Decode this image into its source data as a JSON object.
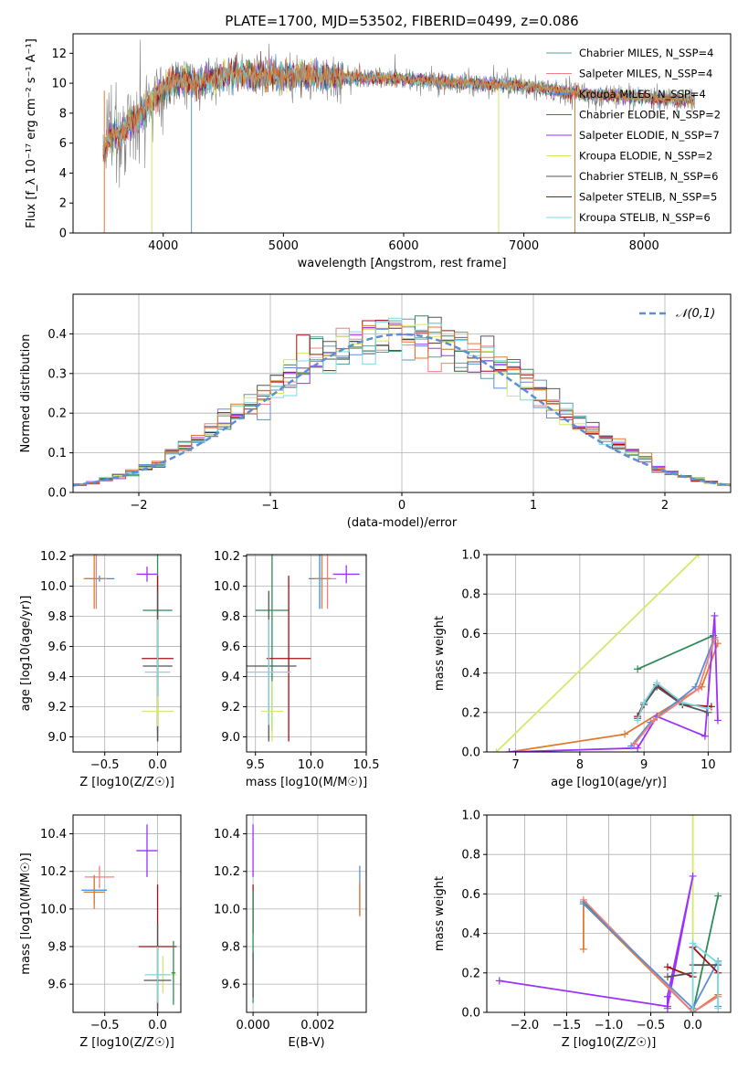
{
  "title": "PLATE=1700, MJD=53502, FIBERID=0499, z=0.086",
  "chart_data": [
    {
      "id": "spectrum",
      "type": "line",
      "xlabel": "wavelength [Angstrom, rest frame]",
      "ylabel": "Flux [f_λ 10⁻¹⁷ erg cm⁻² s⁻¹ A⁻¹]",
      "xlim": [
        3250,
        8720
      ],
      "ylim": [
        0,
        13.3
      ],
      "xticks": [
        4000,
        5000,
        6000,
        7000,
        8000
      ],
      "yticks": [
        0,
        2,
        4,
        6,
        8,
        10,
        12
      ],
      "grid": false,
      "legend_placement": "right",
      "data_color": "#808080",
      "model_colors": [
        "#5f9ea0",
        "#f08080",
        "#1e90ff",
        "#2e8b57",
        "#9b30ff",
        "#d4e86a",
        "#555555",
        "#a01010",
        "#7fd8e0",
        "#e07a30"
      ],
      "series": [
        {
          "name": "Chabrier MILES, N_SSP=4",
          "color": "#5f9ea0"
        },
        {
          "name": "Salpeter MILES, N_SSP=4",
          "color": "#f08080"
        },
        {
          "name": "Kroupa MILES, N_SSP=4",
          "color": "#1e90ff"
        },
        {
          "name": "Chabrier ELODIE, N_SSP=2",
          "color": "#2e8b57"
        },
        {
          "name": "Salpeter ELODIE, N_SSP=7",
          "color": "#9b30ff"
        },
        {
          "name": "Kroupa ELODIE, N_SSP=2",
          "color": "#d4e86a"
        },
        {
          "name": "Chabrier STELIB, N_SSP=6",
          "color": "#555555"
        },
        {
          "name": "Salpeter STELIB, N_SSP=5",
          "color": "#a01010"
        },
        {
          "name": "Kroupa STELIB, N_SSP=6",
          "color": "#7fd8e0"
        }
      ],
      "profile": [
        [
          3500,
          5.4
        ],
        [
          3550,
          6.3
        ],
        [
          3600,
          6.7
        ],
        [
          3650,
          6.4
        ],
        [
          3700,
          7.2
        ],
        [
          3800,
          7.8
        ],
        [
          3900,
          8.8
        ],
        [
          4000,
          9.6
        ],
        [
          4100,
          10.2
        ],
        [
          4300,
          10.0
        ],
        [
          4500,
          10.6
        ],
        [
          5000,
          10.5
        ],
        [
          5500,
          10.4
        ],
        [
          6000,
          10.3
        ],
        [
          6500,
          10.0
        ],
        [
          7000,
          9.8
        ],
        [
          7500,
          9.3
        ],
        [
          8000,
          9.0
        ],
        [
          8400,
          8.9
        ]
      ]
    },
    {
      "id": "residuals",
      "type": "histogram",
      "xlabel": "(data-model)/error",
      "ylabel": "Normed distribution",
      "xlim": [
        -2.5,
        2.5
      ],
      "ylim": [
        0,
        0.5
      ],
      "xticks": [
        -2,
        -1,
        0,
        1,
        2
      ],
      "yticks": [
        0.0,
        0.1,
        0.2,
        0.3,
        0.4
      ],
      "grid": true,
      "legend": "𝒩(0,1)",
      "legend_placement": "top-right",
      "gaussian_color": "#5b8fd6",
      "bin_width": 0.1,
      "bin_start": -2.5,
      "colors": [
        "#5f9ea0",
        "#f08080",
        "#5b8fd6",
        "#2e8b57",
        "#9b30ff",
        "#d4e86a",
        "#555555",
        "#a01010",
        "#7fd8e0",
        "#e07a30"
      ]
    },
    {
      "id": "age_vs_Z",
      "type": "errorbar",
      "xlabel": "Z [log10(Z/Z☉)]",
      "ylabel": "age  [log10(age/yr)]",
      "xlim": [
        -0.8,
        0.22
      ],
      "ylim": [
        8.9,
        10.21
      ],
      "xticks": [
        -0.5,
        0.0
      ],
      "xticklabels": [
        "−0.5",
        "0.0"
      ],
      "yticks": [
        9.0,
        9.2,
        9.4,
        9.6,
        9.8,
        10.0,
        10.2
      ],
      "grid": true,
      "points": [
        {
          "x": -0.55,
          "y": 10.05,
          "xerr": 0.14,
          "yerr": 0.02,
          "color": "#1e90ff"
        },
        {
          "x": -0.58,
          "y": 10.05,
          "xerr": 0.1,
          "yerr": 0.2,
          "color": "#f08080"
        },
        {
          "x": -0.6,
          "y": 10.05,
          "xerr": 0.1,
          "yerr": 0.2,
          "color": "#e07a30"
        },
        {
          "x": -0.1,
          "y": 10.08,
          "xerr": 0.1,
          "yerr": 0.05,
          "color": "#9b30ff"
        },
        {
          "x": 0.0,
          "y": 9.84,
          "xerr": 0.14,
          "yerr": 0.8,
          "color": "#2e8b57"
        },
        {
          "x": 0.0,
          "y": 9.52,
          "xerr": 0.15,
          "yerr": 0.55,
          "color": "#a01010"
        },
        {
          "x": 0.0,
          "y": 9.47,
          "xerr": 0.14,
          "yerr": 0.5,
          "color": "#555555"
        },
        {
          "x": 0.0,
          "y": 9.43,
          "xerr": 0.12,
          "yerr": 0.35,
          "color": "#7fd8e0"
        },
        {
          "x": 0.0,
          "y": 9.17,
          "xerr": 0.15,
          "yerr": 0.1,
          "color": "#d4e86a"
        }
      ]
    },
    {
      "id": "age_vs_mass",
      "type": "errorbar",
      "xlabel": "mass [log10(M/M☉)]",
      "ylabel": "",
      "xlim": [
        9.42,
        10.5
      ],
      "ylim": [
        8.9,
        10.21
      ],
      "xticks": [
        9.5,
        10.0,
        10.5
      ],
      "yticks": [
        9.0,
        9.2,
        9.4,
        9.6,
        9.8,
        10.0,
        10.2
      ],
      "grid": true,
      "points": [
        {
          "x": 10.08,
          "y": 10.05,
          "xerr": 0.1,
          "yerr": 0.2,
          "color": "#1e90ff"
        },
        {
          "x": 10.15,
          "y": 10.05,
          "xerr": 0.08,
          "yerr": 0.2,
          "color": "#f08080"
        },
        {
          "x": 10.1,
          "y": 10.05,
          "xerr": 0.08,
          "yerr": 0.2,
          "color": "#e07a30"
        },
        {
          "x": 10.32,
          "y": 10.08,
          "xerr": 0.12,
          "yerr": 0.06,
          "color": "#9b30ff"
        },
        {
          "x": 9.65,
          "y": 9.84,
          "xerr": 0.15,
          "yerr": 0.8,
          "color": "#2e8b57"
        },
        {
          "x": 9.8,
          "y": 9.52,
          "xerr": 0.2,
          "yerr": 0.55,
          "color": "#a01010"
        },
        {
          "x": 9.62,
          "y": 9.47,
          "xerr": 0.25,
          "yerr": 0.5,
          "color": "#555555"
        },
        {
          "x": 9.62,
          "y": 9.43,
          "xerr": 0.2,
          "yerr": 0.35,
          "color": "#7fd8e0"
        },
        {
          "x": 9.65,
          "y": 9.17,
          "xerr": 0.1,
          "yerr": 0.2,
          "color": "#d4e86a"
        }
      ]
    },
    {
      "id": "mass_weight_vs_age",
      "type": "line",
      "xlabel": "age  [log10(age/yr)]",
      "ylabel": "mass weight",
      "xlim": [
        6.55,
        10.35
      ],
      "ylim": [
        0,
        1
      ],
      "xticks": [
        7,
        8,
        9,
        10
      ],
      "yticks": [
        0.0,
        0.2,
        0.4,
        0.6,
        0.8,
        1.0
      ],
      "grid": true,
      "series": [
        {
          "color": "#d4e86a",
          "x": [
            6.7,
            9.85
          ],
          "y": [
            0.0,
            1.0
          ]
        },
        {
          "color": "#2e8b57",
          "x": [
            8.9,
            10.08
          ],
          "y": [
            0.42,
            0.59
          ]
        },
        {
          "color": "#e07a30",
          "x": [
            6.9,
            8.7,
            9.9,
            10.15
          ],
          "y": [
            0.0,
            0.09,
            0.33,
            0.55
          ]
        },
        {
          "color": "#9b30ff",
          "x": [
            6.9,
            8.9,
            9.2,
            9.95,
            10.1,
            10.15
          ],
          "y": [
            0.0,
            0.02,
            0.18,
            0.08,
            0.69,
            0.16
          ]
        },
        {
          "color": "#a01010",
          "x": [
            8.9,
            9.0,
            9.2,
            9.6,
            10.05
          ],
          "y": [
            0.18,
            0.25,
            0.34,
            0.24,
            0.23
          ]
        },
        {
          "color": "#555555",
          "x": [
            8.9,
            9.0,
            9.2,
            9.6,
            10.0
          ],
          "y": [
            0.17,
            0.24,
            0.33,
            0.24,
            0.2
          ]
        },
        {
          "color": "#7fd8e0",
          "x": [
            8.9,
            9.0,
            9.2,
            9.6,
            10.0
          ],
          "y": [
            0.16,
            0.25,
            0.35,
            0.25,
            0.22
          ]
        },
        {
          "color": "#5b8fd6",
          "x": [
            8.8,
            9.1,
            9.8,
            10.1
          ],
          "y": [
            0.03,
            0.15,
            0.33,
            0.58
          ]
        },
        {
          "color": "#f08080",
          "x": [
            8.85,
            9.15,
            9.85,
            10.1
          ],
          "y": [
            0.04,
            0.16,
            0.32,
            0.57
          ]
        }
      ]
    },
    {
      "id": "mass_vs_Z",
      "type": "errorbar",
      "xlabel": "Z [log10(Z/Z☉)]",
      "ylabel": "mass [log10(M/M☉)]",
      "xlim": [
        -0.8,
        0.22
      ],
      "ylim": [
        9.45,
        10.5
      ],
      "xticks": [
        -0.5,
        0.0
      ],
      "xticklabels": [
        "−0.5",
        "0.0"
      ],
      "yticks": [
        9.6,
        9.8,
        10.0,
        10.2,
        10.4
      ],
      "grid": true,
      "points": [
        {
          "x": -0.6,
          "y": 10.1,
          "xerr": 0.12,
          "yerr": 0.08,
          "color": "#1e90ff"
        },
        {
          "x": -0.55,
          "y": 10.17,
          "xerr": 0.14,
          "yerr": 0.06,
          "color": "#f08080"
        },
        {
          "x": -0.6,
          "y": 10.09,
          "xerr": 0.1,
          "yerr": 0.09,
          "color": "#e07a30"
        },
        {
          "x": -0.1,
          "y": 10.31,
          "xerr": 0.1,
          "yerr": 0.14,
          "color": "#9b30ff"
        },
        {
          "x": 0.0,
          "y": 9.8,
          "xerr": 0.18,
          "yerr": 0.33,
          "color": "#a01010"
        },
        {
          "x": 0.05,
          "y": 9.65,
          "xerr": 0.13,
          "yerr": 0.1,
          "color": "#d4e86a"
        },
        {
          "x": 0.0,
          "y": 9.62,
          "xerr": 0.13,
          "yerr": 0.3,
          "color": "#555555"
        },
        {
          "x": 0.0,
          "y": 9.65,
          "xerr": 0.12,
          "yerr": 0.15,
          "color": "#7fd8e0"
        },
        {
          "x": 0.15,
          "y": 9.66,
          "xerr": 0.02,
          "yerr": 0.17,
          "color": "#2e8b57"
        }
      ]
    },
    {
      "id": "mass_vs_EBV",
      "type": "errorbar",
      "xlabel": "E(B-V)",
      "ylabel": "",
      "xlim": [
        -0.0002,
        0.0035
      ],
      "ylim": [
        9.45,
        10.5
      ],
      "xticks": [
        0.0,
        0.002
      ],
      "xticklabels": [
        "0.000",
        "0.002"
      ],
      "yticks": [
        9.6,
        9.8,
        10.0,
        10.2,
        10.4
      ],
      "grid": true,
      "points": [
        {
          "x": 0.0,
          "y": 10.31,
          "xerr": 0,
          "yerr": 0.14,
          "color": "#9b30ff"
        },
        {
          "x": 0.0,
          "y": 10.0,
          "xerr": 0,
          "yerr": 0.13,
          "color": "#a01010"
        },
        {
          "x": 0.0,
          "y": 9.8,
          "xerr": 0,
          "yerr": 0.3,
          "color": "#2e8b57"
        },
        {
          "x": 0.0,
          "y": 9.65,
          "xerr": 0,
          "yerr": 0.12,
          "color": "#555555"
        },
        {
          "x": 0.0033,
          "y": 10.1,
          "xerr": 0,
          "yerr": 0.13,
          "color": "#5b8fd6"
        },
        {
          "x": 0.0033,
          "y": 10.05,
          "xerr": 0,
          "yerr": 0.09,
          "color": "#e07a30"
        }
      ]
    },
    {
      "id": "mass_weight_vs_Z",
      "type": "line",
      "xlabel": "Z [log10(Z/Z☉)]",
      "ylabel": "mass weight",
      "xlim": [
        -2.45,
        0.45
      ],
      "ylim": [
        0,
        1
      ],
      "xticks": [
        -2.0,
        -1.5,
        -1.0,
        -0.5,
        0.0
      ],
      "xticklabels": [
        "−2.0",
        "−1.5",
        "−1.0",
        "−0.5",
        "0.0"
      ],
      "yticks": [
        0.0,
        0.2,
        0.4,
        0.6,
        0.8,
        1.0
      ],
      "grid": true,
      "series": [
        {
          "color": "#d4e86a",
          "x": [
            0.0,
            0.0
          ],
          "y": [
            0.0,
            1.0
          ]
        },
        {
          "color": "#9b30ff",
          "x": [
            -2.3,
            -0.3,
            0.0,
            -0.3,
            -0.3
          ],
          "y": [
            0.16,
            0.03,
            0.69,
            0.08,
            0.02
          ]
        },
        {
          "color": "#2e8b57",
          "x": [
            -1.3,
            0.0,
            0.3
          ],
          "y": [
            0.56,
            0.0,
            0.59
          ]
        },
        {
          "color": "#e07a30",
          "x": [
            -1.3,
            -1.3,
            0.0,
            0.3
          ],
          "y": [
            0.32,
            0.55,
            0.0,
            0.09
          ]
        },
        {
          "color": "#f08080",
          "x": [
            -1.3,
            0.0,
            0.3
          ],
          "y": [
            0.57,
            0.0,
            0.08
          ]
        },
        {
          "color": "#5b8fd6",
          "x": [
            -1.3,
            0.0,
            0.3,
            0.3
          ],
          "y": [
            0.55,
            0.02,
            0.26,
            0.03
          ]
        },
        {
          "color": "#a01010",
          "x": [
            -0.3,
            0.0,
            0.0,
            0.3
          ],
          "y": [
            0.23,
            0.18,
            0.33,
            0.2
          ]
        },
        {
          "color": "#555555",
          "x": [
            -0.3,
            0.0,
            0.0,
            0.3
          ],
          "y": [
            0.18,
            0.2,
            0.24,
            0.24
          ]
        },
        {
          "color": "#7fd8e0",
          "x": [
            0.0,
            0.0,
            0.3,
            0.3
          ],
          "y": [
            0.0,
            0.35,
            0.25,
            0.02
          ]
        }
      ]
    }
  ]
}
